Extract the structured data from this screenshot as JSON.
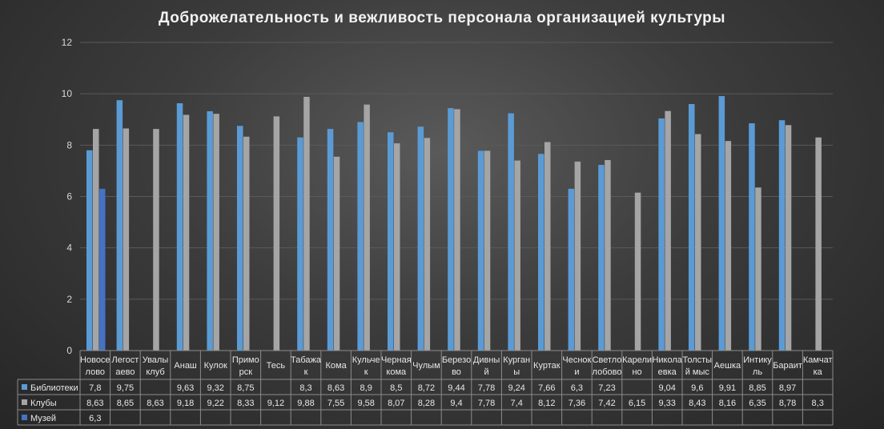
{
  "title": "Доброжелательность и вежливость персонала организацией культуры",
  "colors": {
    "libraries": "#5b9bd5",
    "clubs": "#a5a5a5",
    "museum": "#4472c4",
    "grid": "#5a5a5a",
    "table_border": "#8c8c8c"
  },
  "chart_data": {
    "type": "bar",
    "title": "Доброжелательность и вежливость персонала организацией культуры",
    "ylim": [
      0,
      12
    ],
    "yticks": [
      "0",
      "2",
      "4",
      "6",
      "8",
      "10",
      "12"
    ],
    "legend_placement": "data-table-left",
    "grid": true,
    "categories": [
      [
        "Новосе",
        "лово"
      ],
      [
        "Легост",
        "аево"
      ],
      [
        "Увалы",
        "клуб"
      ],
      [
        "Анаш"
      ],
      [
        "Кулок"
      ],
      [
        "Примо",
        "рск"
      ],
      [
        "Тесь"
      ],
      [
        "Табажа",
        "к"
      ],
      [
        "Кома"
      ],
      [
        "Кульче",
        "к"
      ],
      [
        "Черная",
        "кома"
      ],
      [
        "Чулым"
      ],
      [
        "Березо",
        "во"
      ],
      [
        "Дивны",
        "й"
      ],
      [
        "Курган",
        "ы"
      ],
      [
        "Куртак"
      ],
      [
        "Чеснок",
        "и"
      ],
      [
        "Светло",
        "лобово"
      ],
      [
        "Карели",
        "но"
      ],
      [
        "Никола",
        "евка"
      ],
      [
        "Толсты",
        "й мыс"
      ],
      [
        "Аешка"
      ],
      [
        "Интику",
        "ль"
      ],
      [
        "Бараит"
      ],
      [
        "Камчат",
        "ка"
      ]
    ],
    "series": [
      {
        "name": "Библиотеки",
        "values": [
          7.8,
          9.75,
          null,
          9.63,
          9.32,
          8.75,
          null,
          8.3,
          8.63,
          8.9,
          8.5,
          8.72,
          9.44,
          7.78,
          9.24,
          7.66,
          6.3,
          7.23,
          null,
          9.04,
          9.6,
          9.91,
          8.85,
          8.97,
          null
        ],
        "labels": [
          "7,8",
          "9,75",
          "",
          "9,63",
          "9,32",
          "8,75",
          "",
          "8,3",
          "8,63",
          "8,9",
          "8,5",
          "8,72",
          "9,44",
          "7,78",
          "9,24",
          "7,66",
          "6,3",
          "7,23",
          "",
          "9,04",
          "9,6",
          "9,91",
          "8,85",
          "8,97",
          ""
        ]
      },
      {
        "name": "Клубы",
        "values": [
          8.63,
          8.65,
          8.63,
          9.18,
          9.22,
          8.33,
          9.12,
          9.88,
          7.55,
          9.58,
          8.07,
          8.28,
          9.4,
          7.78,
          7.4,
          8.12,
          7.36,
          7.42,
          6.15,
          9.33,
          8.43,
          8.16,
          6.35,
          8.78,
          8.3
        ],
        "labels": [
          "8,63",
          "8,65",
          "8,63",
          "9,18",
          "9,22",
          "8,33",
          "9,12",
          "9,88",
          "7,55",
          "9,58",
          "8,07",
          "8,28",
          "9,4",
          "7,78",
          "7,4",
          "8,12",
          "7,36",
          "7,42",
          "6,15",
          "9,33",
          "8,43",
          "8,16",
          "6,35",
          "8,78",
          "8,3"
        ]
      },
      {
        "name": "Музей",
        "values": [
          6.3,
          null,
          null,
          null,
          null,
          null,
          null,
          null,
          null,
          null,
          null,
          null,
          null,
          null,
          null,
          null,
          null,
          null,
          null,
          null,
          null,
          null,
          null,
          null,
          null
        ],
        "labels": [
          "6,3",
          "",
          "",
          "",
          "",
          "",
          "",
          "",
          "",
          "",
          "",
          "",
          "",
          "",
          "",
          "",
          "",
          "",
          "",
          "",
          "",
          "",
          "",
          "",
          ""
        ]
      }
    ]
  }
}
